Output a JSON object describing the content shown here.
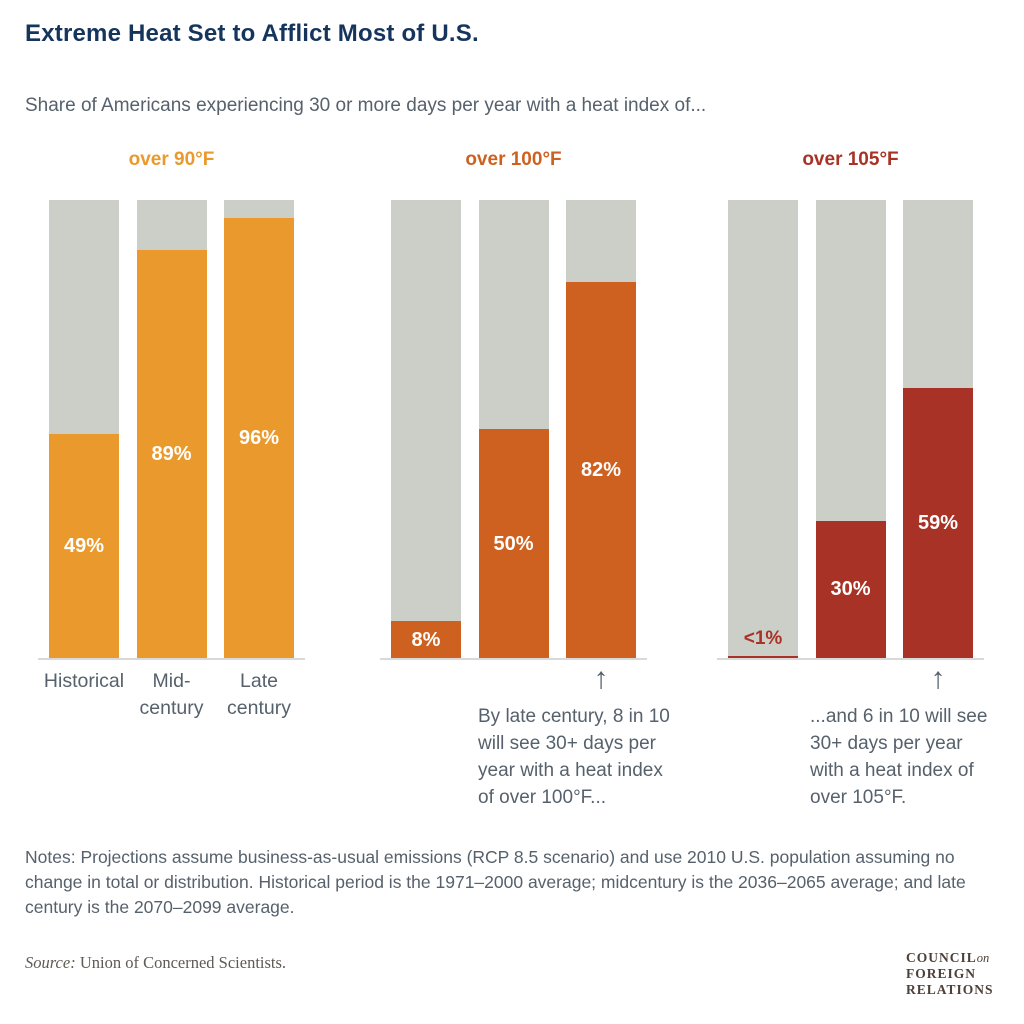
{
  "title": "Extreme Heat Set to Afflict Most of U.S.",
  "subtitle": "Share of Americans experiencing 30 or more days per year with a heat index of...",
  "icons": {
    "up_arrow": "↑"
  },
  "colors": {
    "title_navy": "#16355D",
    "text_slate": "#56616C",
    "track_grey": "#CBCFC7",
    "axis_grey": "#D9D9D9",
    "orange_90f": "#EA9A2D",
    "orange_100f": "#CE6120",
    "red_105f": "#A93226",
    "logo_brown": "#4E4039",
    "background": "#FFFFFF"
  },
  "chart_data": {
    "type": "bar",
    "title": "Extreme Heat Set to Afflict Most of U.S.",
    "subtitle": "Share of Americans experiencing 30 or more days per year with a heat index of...",
    "unit": "percent of U.S. population",
    "ylim": [
      0,
      100
    ],
    "grid": false,
    "legend_position": "none",
    "categories": [
      "Historical",
      "Mid-century",
      "Late century"
    ],
    "category_lines": [
      [
        "Historical"
      ],
      [
        "Mid-",
        "century"
      ],
      [
        "Late",
        "century"
      ]
    ],
    "groups": [
      {
        "label": "over 90°F",
        "color": "#EA9A2D",
        "values": [
          49,
          89,
          96
        ],
        "value_labels": [
          "49%",
          "89%",
          "96%"
        ],
        "show_category_labels": true
      },
      {
        "label": "over 100°F",
        "color": "#CE6120",
        "values": [
          8,
          50,
          82
        ],
        "value_labels": [
          "8%",
          "50%",
          "82%"
        ],
        "annotation": {
          "arrow_bar_index": 2,
          "text": "By late century, 8 in 10 will see 30+ days per year with a heat index of over 100°F...",
          "lines": [
            "By late century, 8 in 10",
            "will see 30+ days per",
            "year with a heat index",
            "of over 100°F..."
          ]
        }
      },
      {
        "label": "over 105°F",
        "color": "#A93226",
        "values": [
          0.5,
          30,
          59
        ],
        "value_labels": [
          "<1%",
          "30%",
          "59%"
        ],
        "outside_label_indices": [
          0
        ],
        "annotation": {
          "arrow_bar_index": 2,
          "text": "...and 6 in 10 will see 30+ days per year with a heat index of over 105°F.",
          "lines": [
            "...and 6 in 10 will see",
            "30+ days per year",
            "with a heat index of",
            "over 105°F."
          ]
        }
      }
    ]
  },
  "notes": "Notes: Projections assume business-as-usual emissions (RCP 8.5 scenario) and use 2010 U.S. population assuming no change in total or distribution. Historical period is the 1971–2000 average; midcentury is the 2036–2065 average; and late century is the 2070–2099 average.",
  "source": {
    "label": "Source:",
    "text": " Union of Concerned Scientists."
  },
  "logo": {
    "line1": "COUNCIL",
    "on": "on",
    "line2": "FOREIGN",
    "line3": "RELATIONS"
  }
}
